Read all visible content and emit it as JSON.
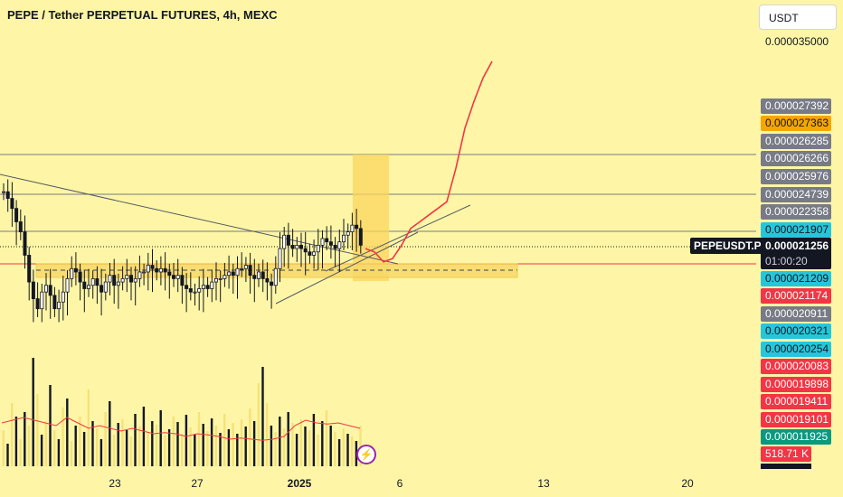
{
  "header": {
    "title": "PEPE / Tether PERPETUAL FUTURES, 4h, MEXC"
  },
  "scale": {
    "currency": "USDT",
    "top_price": "0.000035000"
  },
  "symbol_tag": "PEPEUSDT.P",
  "current_price": {
    "price": "0.000021256",
    "countdown": "01:00:20"
  },
  "price_labels": [
    {
      "text": "0.000027392",
      "bg": "#787b86",
      "fg": "#ffffff"
    },
    {
      "text": "0.000027363",
      "bg": "#f7a600",
      "fg": "#131722"
    },
    {
      "text": "0.000026285",
      "bg": "#787b86",
      "fg": "#ffffff"
    },
    {
      "text": "0.000026266",
      "bg": "#787b86",
      "fg": "#ffffff"
    },
    {
      "text": "0.000025976",
      "bg": "#787b86",
      "fg": "#ffffff"
    },
    {
      "text": "0.000024739",
      "bg": "#787b86",
      "fg": "#ffffff"
    },
    {
      "text": "0.000022358",
      "bg": "#787b86",
      "fg": "#ffffff"
    },
    {
      "text": "0.000021907",
      "bg": "#26c6da",
      "fg": "#131722"
    },
    {
      "text": "0.000021209",
      "bg": "#26c6da",
      "fg": "#131722"
    },
    {
      "text": "0.000021174",
      "bg": "#f23645",
      "fg": "#ffffff"
    },
    {
      "text": "0.000020911",
      "bg": "#787b86",
      "fg": "#ffffff"
    },
    {
      "text": "0.000020321",
      "bg": "#26c6da",
      "fg": "#131722"
    },
    {
      "text": "0.000020254",
      "bg": "#26c6da",
      "fg": "#131722"
    },
    {
      "text": "0.000020083",
      "bg": "#f23645",
      "fg": "#ffffff"
    },
    {
      "text": "0.000019898",
      "bg": "#f23645",
      "fg": "#ffffff"
    },
    {
      "text": "0.000019411",
      "bg": "#f23645",
      "fg": "#ffffff"
    },
    {
      "text": "0.000019101",
      "bg": "#f23645",
      "fg": "#ffffff"
    },
    {
      "text": "0.000011925",
      "bg": "#089981",
      "fg": "#ffffff"
    }
  ],
  "volume_label": "518.71 K",
  "x_axis_labels": [
    "23",
    "27",
    "2025",
    "6",
    "13",
    "20"
  ],
  "chart_data": {
    "type": "candlestick",
    "series": [
      {
        "name": "",
        "values": [
          22.9,
          22.7,
          22.4,
          22.0,
          21.7,
          21.0,
          20.2,
          19.7,
          19.4,
          19.9,
          20.1,
          19.8,
          19.4,
          19.6,
          19.9,
          20.3,
          20.6,
          20.5,
          20.2,
          20.0,
          20.1,
          20.3,
          20.1,
          19.9,
          20.2,
          20.4,
          20.1,
          20.2,
          20.3,
          20.4,
          20.2,
          20.3,
          20.5,
          20.5,
          20.7,
          20.6,
          20.5,
          20.6,
          20.5,
          20.4,
          20.3,
          20.4,
          20.1,
          20.0,
          19.9,
          19.9,
          20.0,
          20.1,
          20.0,
          20.2,
          20.3,
          20.3,
          20.4,
          20.5,
          20.4,
          20.6,
          20.6,
          20.7,
          20.4,
          20.3,
          20.5,
          20.3,
          20.2,
          20.1,
          20.6,
          21.2,
          21.6,
          21.3,
          21.2,
          21.3,
          21.2,
          21.1,
          21.0,
          21.1,
          21.3,
          21.5,
          21.4,
          21.3,
          21.2,
          21.4,
          21.6,
          21.7,
          21.9,
          21.8,
          21.3
        ]
      }
    ],
    "volume_line": [
      0.8,
      0.85,
      0.9,
      0.85,
      0.8,
      0.75,
      0.9,
      0.8,
      0.7,
      0.75,
      0.7,
      0.65,
      0.7,
      0.65,
      0.6,
      0.62,
      0.6,
      0.55,
      0.6,
      0.58,
      0.55,
      0.5,
      0.52,
      0.5,
      0.48,
      0.5,
      0.55,
      0.75,
      0.85,
      0.8,
      0.78,
      0.8,
      0.75,
      0.7
    ],
    "projection_path": [
      21.2,
      21.1,
      20.8,
      20.9,
      21.3,
      21.8,
      22.0,
      22.2,
      22.4,
      22.6,
      23.6,
      24.8,
      25.6,
      26.3,
      26.8
    ]
  }
}
